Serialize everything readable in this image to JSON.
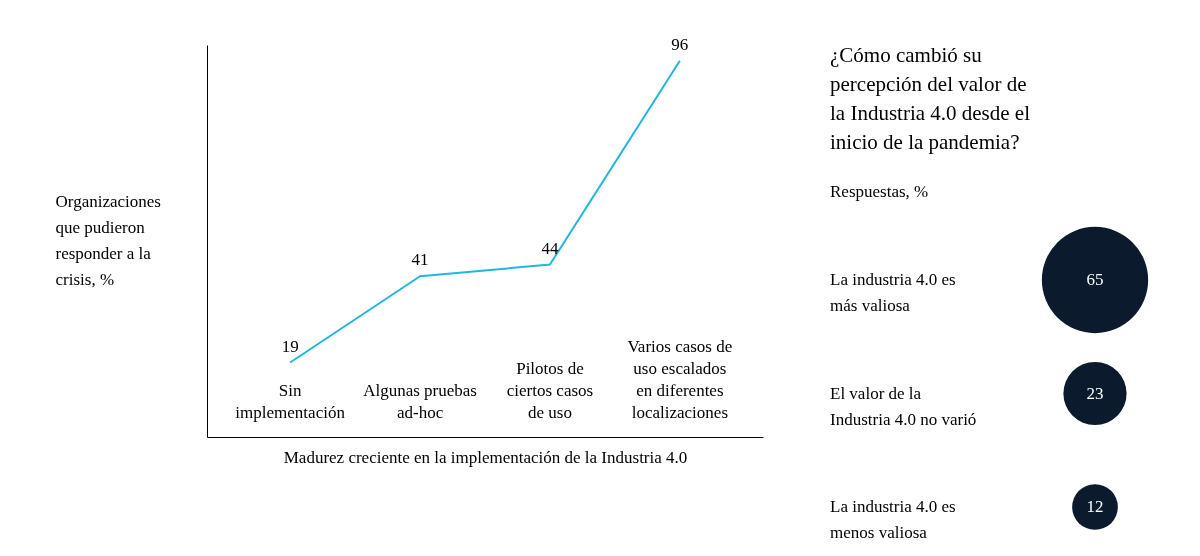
{
  "chart_data": [
    {
      "type": "line",
      "categories": [
        "Sin implementación",
        "Algunas pruebas ad-hoc",
        "Pilotos de ciertos casos de uso",
        "Varios casos de uso escalados en diferentes localizaciones"
      ],
      "series": [
        {
          "color": "#21b6dd",
          "values": [
            19,
            41,
            44,
            96
          ]
        }
      ],
      "xlabel": "Madurez creciente en la implementación de la Industria 4.0",
      "ylabel": "Organizaciones que pudieron responder a la crisis, %",
      "ylim": [
        0,
        100
      ],
      "tick_labels": "x",
      "data_labels": true
    },
    {
      "type": "other",
      "title": "¿Cómo cambió su percepción del valor de la Industria 4.0 desde el inicio de la pandemia?",
      "subtitle": "Respuestas, %",
      "categories": [
        "La industria 4.0 es más valiosa",
        "El valor de la Industria 4.0 no varió",
        "La industria 4.0 es menos valiosa"
      ],
      "values": [
        65,
        23,
        12
      ],
      "colors": [
        "#0b1a2d",
        "#0b1a2d",
        "#0b1a2d"
      ],
      "data_labels": true
    }
  ]
}
